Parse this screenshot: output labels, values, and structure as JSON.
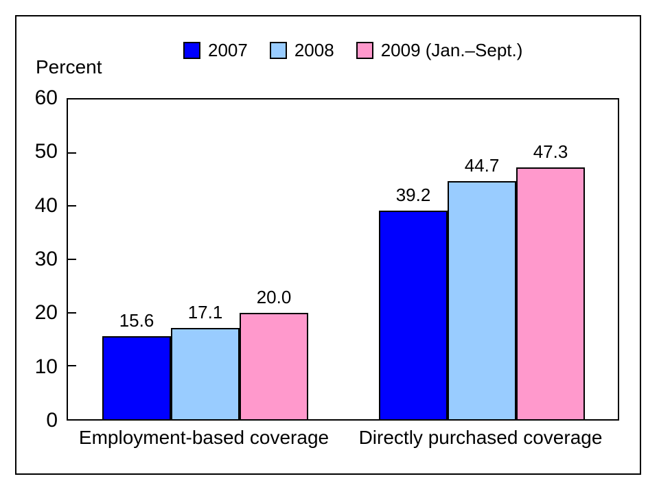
{
  "ylabel_text": "Percent",
  "colors": {
    "series_2007": "#0000FF",
    "series_2008": "#99CCFF",
    "series_2009": "#FF99CC",
    "axis": "#000000",
    "background": "#FFFFFF"
  },
  "chart_data": {
    "type": "bar",
    "title": "",
    "xlabel": "",
    "ylabel": "Percent",
    "categories": [
      "Employment-based coverage",
      "Directly purchased coverage"
    ],
    "series": [
      {
        "name": "2007",
        "color": "#0000FF",
        "values": [
          15.6,
          39.2
        ]
      },
      {
        "name": "2008",
        "color": "#99CCFF",
        "values": [
          17.1,
          44.7
        ]
      },
      {
        "name": "2009 (Jan.–Sept.)",
        "color": "#FF99CC",
        "values": [
          20.0,
          47.3
        ]
      }
    ],
    "bar_value_labels": [
      [
        "15.6",
        "17.1",
        "20.0"
      ],
      [
        "39.2",
        "44.7",
        "47.3"
      ]
    ],
    "ylim": [
      0,
      60
    ],
    "yticks": [
      0,
      10,
      20,
      30,
      40,
      50,
      60
    ],
    "grid": false,
    "legend_position": "top"
  }
}
